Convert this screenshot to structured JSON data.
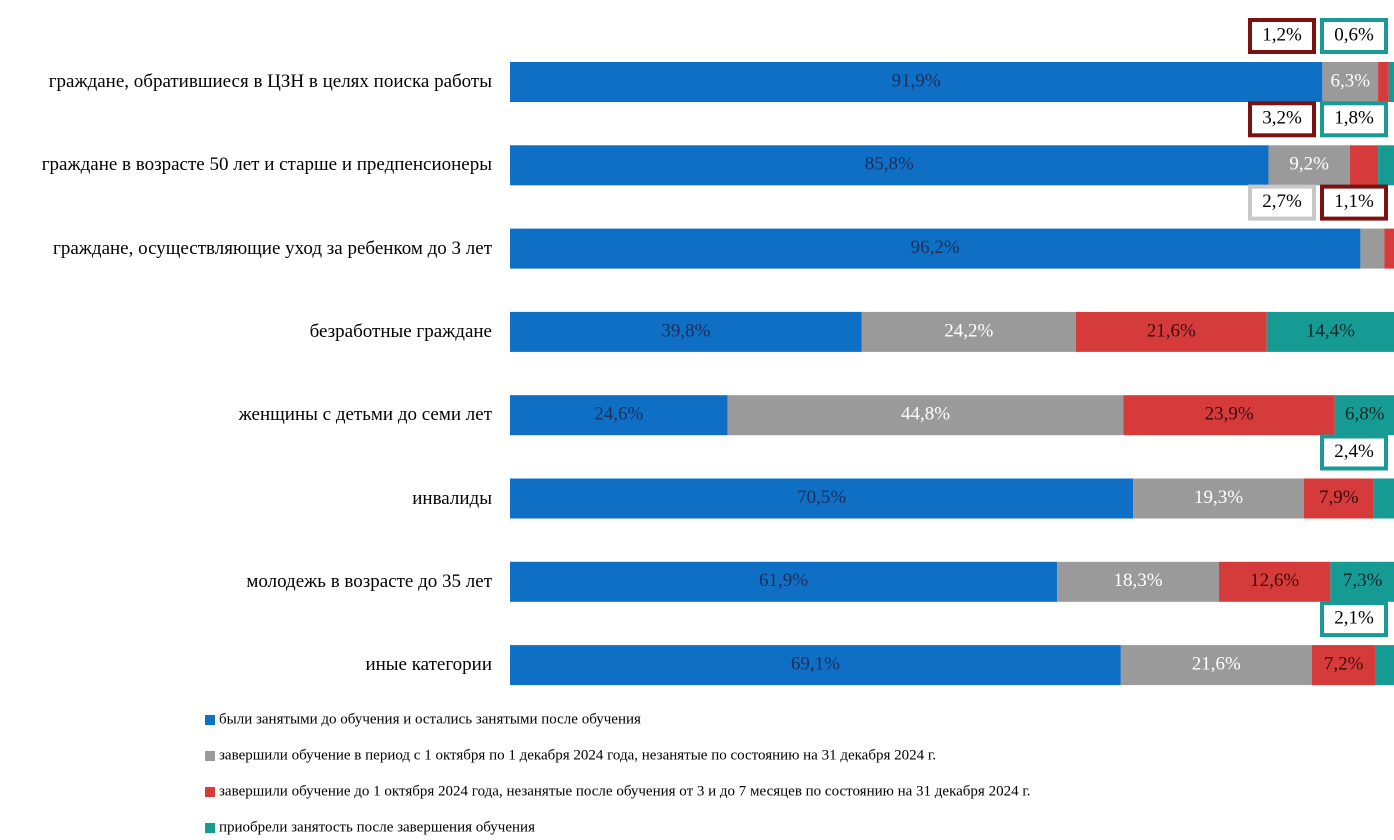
{
  "chart_data": {
    "type": "stacked-bar-horizontal",
    "categories": [
      "граждане, обратившиеся в ЦЗН в целях поиска работы",
      "граждане в возрасте 50 лет и старше и предпенсионеры",
      "граждане, осуществляющие уход за ребенком до 3 лет",
      "безработные граждане",
      "женщины с детьми до семи лет",
      "инвалиды",
      "молодежь в возрасте до 35 лет",
      "иные категории"
    ],
    "xlim": [
      0,
      100
    ],
    "series": [
      {
        "name": "были  занятыми до обучения и остались  занятыми после обучения",
        "color": "#0e6fc4",
        "values": [
          91.9,
          85.8,
          96.2,
          39.8,
          24.6,
          70.5,
          61.9,
          69.1
        ],
        "value_labels": [
          "91,9%",
          "85,8%",
          "96,2%",
          "39,8%",
          "24,6%",
          "70,5%",
          "61,9%",
          "69,1%"
        ]
      },
      {
        "name": "завершили обучение в период с 1 октября по 1 декабря 2024 года, незанятые по состоянию на 31 декабря 2024 г.",
        "color": "#9a9a9a",
        "values": [
          6.3,
          9.2,
          2.7,
          24.2,
          44.8,
          19.3,
          18.3,
          21.6
        ],
        "value_labels": [
          "6,3%",
          "9,2%",
          "2,7%",
          "24,2%",
          "44,8%",
          "19,3%",
          "18,3%",
          "21,6%"
        ]
      },
      {
        "name": "завершили обучение до 1 октября 2024 года,  незанятые после обучения от  3 и до 7 месяцев по состоянию на 31 декабря 2024 г.",
        "color": "#d63b3b",
        "values": [
          1.2,
          3.2,
          1.1,
          21.6,
          23.9,
          7.9,
          12.6,
          7.2
        ],
        "value_labels": [
          "1,2%",
          "3,2%",
          "1,1%",
          "21,6%",
          "23,9%",
          "7,9%",
          "12,6%",
          "7,2%"
        ]
      },
      {
        "name": "приобрели занятость после завершения обучения",
        "color": "#169a94",
        "values": [
          0.6,
          1.8,
          null,
          14.4,
          6.8,
          2.4,
          7.3,
          2.1
        ],
        "value_labels": [
          "0,6%",
          "1,8%",
          null,
          "14,4%",
          "6,8%",
          "2,4%",
          "7,3%",
          "2,1%"
        ]
      }
    ]
  }
}
